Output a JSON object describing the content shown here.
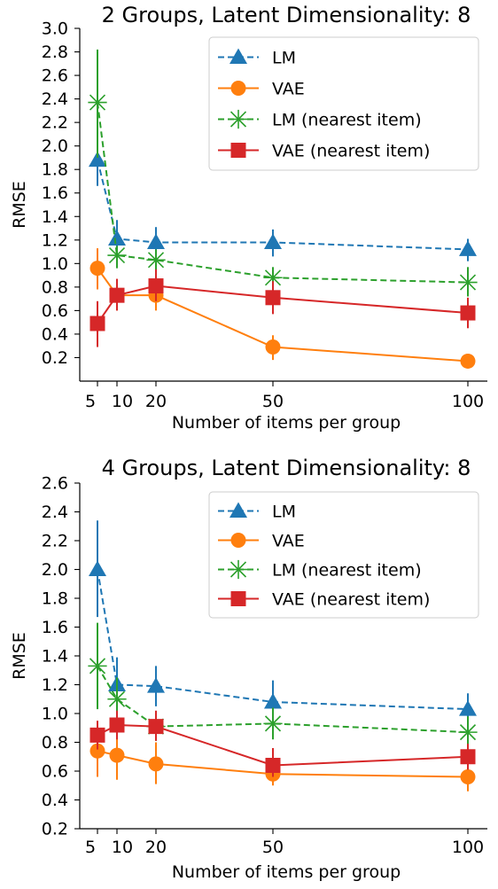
{
  "chart_data": [
    {
      "type": "line",
      "title": "2 Groups, Latent Dimensionality: 8",
      "xlabel": "Number of items per group",
      "ylabel": "RMSE",
      "x": [
        5,
        10,
        20,
        50,
        100
      ],
      "x_tick_labels": [
        "5",
        "10",
        "20",
        "50",
        "100"
      ],
      "ylim": [
        0.0,
        3.0
      ],
      "y_ticks": [
        0.2,
        0.4,
        0.6,
        0.8,
        1.0,
        1.2,
        1.4,
        1.6,
        1.8,
        2.0,
        2.2,
        2.4,
        2.6,
        2.8,
        3.0
      ],
      "y_tick_labels": [
        "0.2",
        "0.4",
        "0.6",
        "0.8",
        "1.0",
        "1.2",
        "1.4",
        "1.6",
        "1.8",
        "2.0",
        "2.2",
        "2.4",
        "2.6",
        "2.8",
        "3.0"
      ],
      "grid": false,
      "legend_position": "top-right",
      "series": [
        {
          "name": "LM",
          "color": "#1f77b4",
          "marker": "triangle",
          "line": "dashed",
          "values": [
            1.88,
            1.21,
            1.18,
            1.18,
            1.12
          ],
          "err_low": [
            1.66,
            1.07,
            1.06,
            1.06,
            1.02
          ],
          "err_high": [
            2.1,
            1.37,
            1.31,
            1.29,
            1.21
          ]
        },
        {
          "name": "VAE",
          "color": "#ff7f0e",
          "marker": "circle",
          "line": "solid",
          "values": [
            0.96,
            0.73,
            0.73,
            0.29,
            0.17
          ],
          "err_low": [
            0.78,
            0.6,
            0.6,
            0.18,
            0.11
          ],
          "err_high": [
            1.13,
            0.85,
            0.86,
            0.39,
            0.23
          ]
        },
        {
          "name": "LM (nearest item)",
          "color": "#2ca02c",
          "marker": "x",
          "line": "dashed",
          "values": [
            2.37,
            1.07,
            1.03,
            0.88,
            0.84
          ],
          "err_low": [
            1.9,
            0.96,
            0.93,
            0.78,
            0.72
          ],
          "err_high": [
            2.82,
            1.15,
            1.12,
            0.97,
            0.97
          ]
        },
        {
          "name": "VAE (nearest item)",
          "color": "#d62728",
          "marker": "square",
          "line": "solid",
          "values": [
            0.49,
            0.73,
            0.81,
            0.71,
            0.58
          ],
          "err_low": [
            0.29,
            0.6,
            0.68,
            0.57,
            0.45
          ],
          "err_high": [
            0.68,
            0.87,
            0.95,
            0.85,
            0.71
          ]
        }
      ]
    },
    {
      "type": "line",
      "title": "4 Groups, Latent Dimensionality: 8",
      "xlabel": "Number of items per group",
      "ylabel": "RMSE",
      "x": [
        5,
        10,
        20,
        50,
        100
      ],
      "x_tick_labels": [
        "5",
        "10",
        "20",
        "50",
        "100"
      ],
      "ylim": [
        0.2,
        2.6
      ],
      "y_ticks": [
        0.2,
        0.4,
        0.6,
        0.8,
        1.0,
        1.2,
        1.4,
        1.6,
        1.8,
        2.0,
        2.2,
        2.4,
        2.6
      ],
      "y_tick_labels": [
        "0.2",
        "0.4",
        "0.6",
        "0.8",
        "1.0",
        "1.2",
        "1.4",
        "1.6",
        "1.8",
        "2.0",
        "2.2",
        "2.4",
        "2.6"
      ],
      "grid": false,
      "legend_position": "top-right",
      "series": [
        {
          "name": "LM",
          "color": "#1f77b4",
          "marker": "triangle",
          "line": "dashed",
          "values": [
            2.0,
            1.2,
            1.19,
            1.08,
            1.03
          ],
          "err_low": [
            1.67,
            1.01,
            1.05,
            0.96,
            0.93
          ],
          "err_high": [
            2.34,
            1.39,
            1.33,
            1.23,
            1.14
          ]
        },
        {
          "name": "VAE",
          "color": "#ff7f0e",
          "marker": "circle",
          "line": "solid",
          "values": [
            0.74,
            0.71,
            0.65,
            0.58,
            0.56
          ],
          "err_low": [
            0.56,
            0.54,
            0.51,
            0.5,
            0.46
          ],
          "err_high": [
            0.91,
            0.87,
            0.8,
            0.65,
            0.64
          ]
        },
        {
          "name": "LM (nearest item)",
          "color": "#2ca02c",
          "marker": "x",
          "line": "dashed",
          "values": [
            1.33,
            1.1,
            0.91,
            0.93,
            0.87
          ],
          "err_low": [
            1.03,
            0.95,
            0.81,
            0.82,
            0.76
          ],
          "err_high": [
            1.63,
            1.25,
            1.01,
            1.04,
            0.98
          ]
        },
        {
          "name": "VAE (nearest item)",
          "color": "#d62728",
          "marker": "square",
          "line": "solid",
          "values": [
            0.85,
            0.92,
            0.91,
            0.64,
            0.7
          ],
          "err_low": [
            0.75,
            0.82,
            0.81,
            0.56,
            0.61
          ],
          "err_high": [
            0.95,
            1.02,
            1.02,
            0.76,
            0.79
          ]
        }
      ]
    }
  ]
}
